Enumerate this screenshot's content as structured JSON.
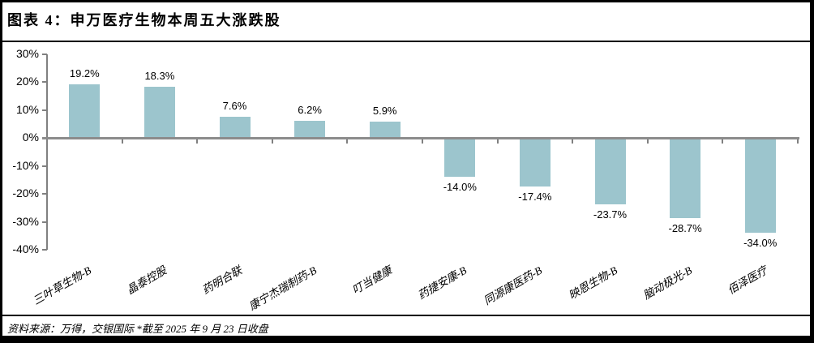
{
  "header": {
    "title": "图表 4：申万医疗生物本周五大涨跌股"
  },
  "footer": {
    "source_note": "资料来源：万得，交银国际  *截至 2025 年 9 月 23 日收盘"
  },
  "chart_data": {
    "type": "bar",
    "title": "申万医疗生物本周五大涨跌股",
    "categories": [
      "三叶草生物-B",
      "晶泰控股",
      "药明合联",
      "康宁杰瑞制药-B",
      "叮当健康",
      "药捷安康-B",
      "同源康医药-B",
      "映恩生物-B",
      "脑动极光-B",
      "佰泽医疗"
    ],
    "values": [
      19.2,
      18.3,
      7.6,
      6.2,
      5.9,
      -14.0,
      -17.4,
      -23.7,
      -28.7,
      -34.0
    ],
    "value_labels": [
      "19.2%",
      "18.3%",
      "7.6%",
      "6.2%",
      "5.9%",
      "-14.0%",
      "-17.4%",
      "-23.7%",
      "-28.7%",
      "-34.0%"
    ],
    "y_ticks": [
      {
        "label": "30%",
        "value": 30
      },
      {
        "label": "20%",
        "value": 20
      },
      {
        "label": "10%",
        "value": 10
      },
      {
        "label": "0%",
        "value": 0
      },
      {
        "label": "-10%",
        "value": -10
      },
      {
        "label": "-20%",
        "value": -20
      },
      {
        "label": "-30%",
        "value": -30
      },
      {
        "label": "-40%",
        "value": -40
      }
    ],
    "ylim": [
      -40,
      30
    ],
    "unit": "%",
    "grid": "off",
    "legend": "none",
    "bar_color": "#9CC5CD",
    "axis_color": "#808080",
    "zero_line_color": "#8C8C8C",
    "label_color": "#000000"
  }
}
